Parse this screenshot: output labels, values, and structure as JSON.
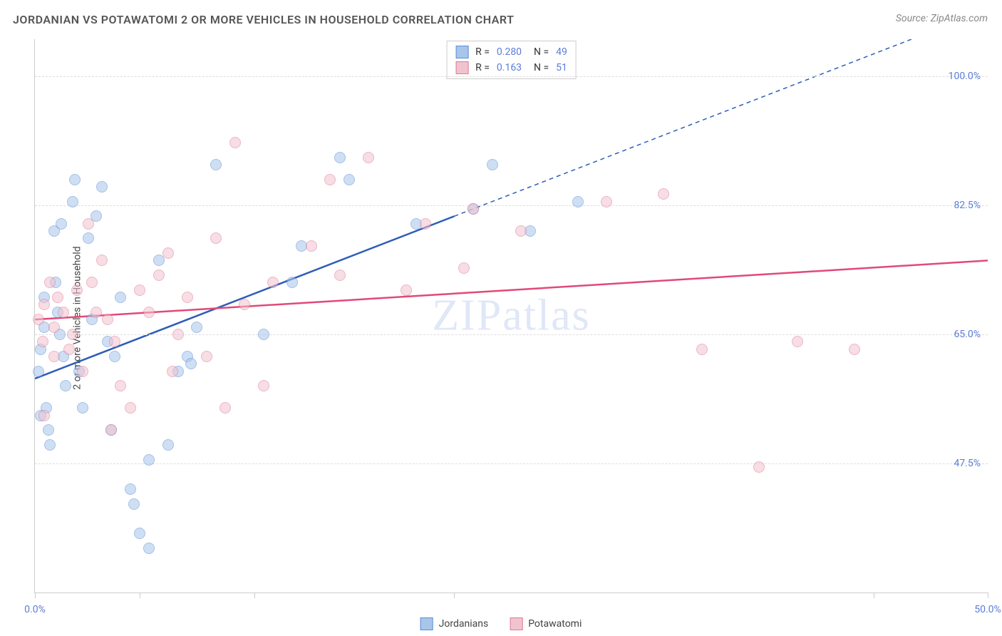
{
  "title": "JORDANIAN VS POTAWATOMI 2 OR MORE VEHICLES IN HOUSEHOLD CORRELATION CHART",
  "source": "Source: ZipAtlas.com",
  "watermark": "ZIPatlas",
  "y_axis_label": "2 or more Vehicles in Household",
  "chart": {
    "type": "scatter",
    "xlim": [
      0,
      50
    ],
    "ylim": [
      30,
      105
    ],
    "x_ticks": [
      0,
      5.5,
      11.5,
      22,
      44,
      50
    ],
    "x_tick_labels": {
      "0": "0.0%",
      "50": "50.0%"
    },
    "y_gridlines": [
      47.5,
      65.0,
      82.5,
      100.0
    ],
    "y_tick_labels": [
      "47.5%",
      "65.0%",
      "82.5%",
      "100.0%"
    ],
    "background_color": "#ffffff",
    "grid_color": "#dddddd",
    "axis_color": "#cccccc",
    "label_color": "#5b7dd8",
    "marker_opacity": 0.55,
    "marker_radius": 8,
    "series": [
      {
        "name": "Jordanians",
        "color_fill": "#a9c5ea",
        "color_stroke": "#5b8dd8",
        "R": "0.280",
        "N": "49",
        "trend": {
          "x1": 0,
          "y1": 59,
          "x2": 22,
          "y2": 81,
          "x2_dash_end": 50,
          "y2_dash_end": 109,
          "stroke": "#2d5db8",
          "width": 2.5
        },
        "points": [
          [
            0.2,
            60
          ],
          [
            0.3,
            63
          ],
          [
            0.5,
            66
          ],
          [
            0.5,
            70
          ],
          [
            0.6,
            55
          ],
          [
            0.7,
            52
          ],
          [
            0.8,
            50
          ],
          [
            1.0,
            79
          ],
          [
            1.1,
            72
          ],
          [
            1.2,
            68
          ],
          [
            1.3,
            65
          ],
          [
            1.4,
            80
          ],
          [
            1.5,
            62
          ],
          [
            1.6,
            58
          ],
          [
            2.0,
            83
          ],
          [
            2.1,
            86
          ],
          [
            2.3,
            60
          ],
          [
            2.5,
            55
          ],
          [
            2.8,
            78
          ],
          [
            3.0,
            67
          ],
          [
            3.2,
            81
          ],
          [
            3.5,
            85
          ],
          [
            3.8,
            64
          ],
          [
            4.0,
            52
          ],
          [
            4.2,
            62
          ],
          [
            4.5,
            70
          ],
          [
            5.0,
            44
          ],
          [
            5.2,
            42
          ],
          [
            5.5,
            38
          ],
          [
            6.0,
            36
          ],
          [
            6.0,
            48
          ],
          [
            6.5,
            75
          ],
          [
            7.0,
            50
          ],
          [
            7.5,
            60
          ],
          [
            8.0,
            62
          ],
          [
            8.2,
            61
          ],
          [
            8.5,
            66
          ],
          [
            9.5,
            88
          ],
          [
            12.0,
            65
          ],
          [
            13.5,
            72
          ],
          [
            14.0,
            77
          ],
          [
            16.0,
            89
          ],
          [
            16.5,
            86
          ],
          [
            20.0,
            80
          ],
          [
            23.0,
            82
          ],
          [
            24.0,
            88
          ],
          [
            26.0,
            79
          ],
          [
            28.5,
            83
          ],
          [
            0.3,
            54
          ]
        ]
      },
      {
        "name": "Potawatomi",
        "color_fill": "#f1c3cf",
        "color_stroke": "#e07a96",
        "R": "0.163",
        "N": "51",
        "trend": {
          "x1": 0,
          "y1": 67,
          "x2": 50,
          "y2": 75,
          "stroke": "#e04a78",
          "width": 2.5
        },
        "points": [
          [
            0.2,
            67
          ],
          [
            0.4,
            64
          ],
          [
            0.5,
            69
          ],
          [
            0.8,
            72
          ],
          [
            1.0,
            66
          ],
          [
            1.2,
            70
          ],
          [
            1.5,
            68
          ],
          [
            1.8,
            63
          ],
          [
            2.0,
            65
          ],
          [
            2.2,
            71
          ],
          [
            2.5,
            60
          ],
          [
            2.8,
            80
          ],
          [
            3.0,
            72
          ],
          [
            3.2,
            68
          ],
          [
            3.5,
            75
          ],
          [
            3.8,
            67
          ],
          [
            4.0,
            52
          ],
          [
            4.2,
            64
          ],
          [
            4.5,
            58
          ],
          [
            5.0,
            55
          ],
          [
            5.5,
            71
          ],
          [
            6.0,
            68
          ],
          [
            6.5,
            73
          ],
          [
            7.0,
            76
          ],
          [
            7.2,
            60
          ],
          [
            7.5,
            65
          ],
          [
            8.0,
            70
          ],
          [
            9.0,
            62
          ],
          [
            9.5,
            78
          ],
          [
            10.0,
            55
          ],
          [
            10.5,
            91
          ],
          [
            11.0,
            69
          ],
          [
            12.0,
            58
          ],
          [
            12.5,
            72
          ],
          [
            14.5,
            77
          ],
          [
            15.5,
            86
          ],
          [
            16.0,
            73
          ],
          [
            17.5,
            89
          ],
          [
            19.5,
            71
          ],
          [
            20.5,
            80
          ],
          [
            22.5,
            74
          ],
          [
            23.0,
            82
          ],
          [
            25.5,
            79
          ],
          [
            30.0,
            83
          ],
          [
            33.0,
            84
          ],
          [
            35.0,
            63
          ],
          [
            38.0,
            47
          ],
          [
            40.0,
            64
          ],
          [
            43.0,
            63
          ],
          [
            0.5,
            54
          ],
          [
            1.0,
            62
          ]
        ]
      }
    ]
  },
  "legend_bottom": [
    {
      "label": "Jordanians",
      "fill": "#a9c5ea",
      "stroke": "#5b8dd8"
    },
    {
      "label": "Potawatomi",
      "fill": "#f1c3cf",
      "stroke": "#e07a96"
    }
  ]
}
